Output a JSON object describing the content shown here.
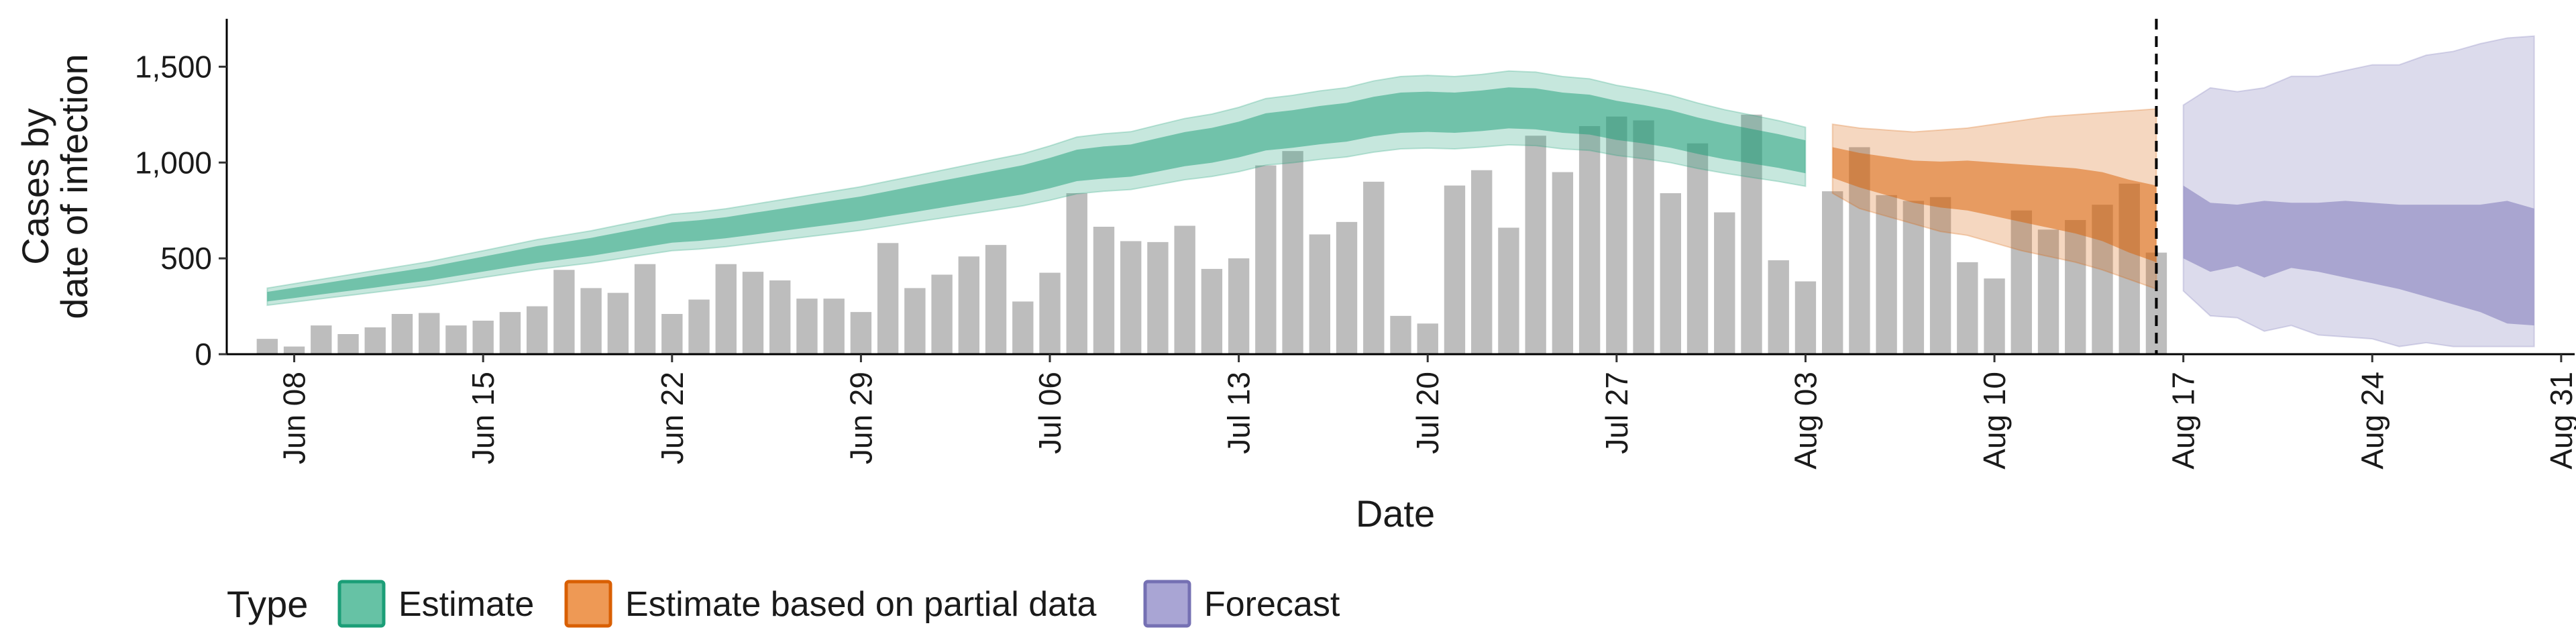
{
  "chart_data": {
    "type": "bar",
    "xlabel": "Date",
    "ylabel_lines": [
      "Cases by",
      "date of infection"
    ],
    "ylim": [
      0,
      1750
    ],
    "yticks": [
      0,
      500,
      1000,
      1500
    ],
    "ytick_labels": [
      "0",
      "500",
      "1,000",
      "1,500"
    ],
    "x_start": "2020-06-07",
    "xlim_days": [
      -1.5,
      85.5
    ],
    "xticks": [
      "Jun 08",
      "Jun 15",
      "Jun 22",
      "Jun 29",
      "Jul 06",
      "Jul 13",
      "Jul 20",
      "Jul 27",
      "Aug 03",
      "Aug 10",
      "Aug 17",
      "Aug 24",
      "Aug 31"
    ],
    "xtick_days": [
      1,
      8,
      15,
      22,
      29,
      36,
      43,
      50,
      57,
      64,
      71,
      78,
      85
    ],
    "vline_day": 70,
    "bars": [
      80,
      40,
      150,
      105,
      140,
      210,
      215,
      150,
      175,
      220,
      250,
      440,
      345,
      320,
      470,
      210,
      285,
      470,
      430,
      385,
      290,
      290,
      220,
      580,
      345,
      415,
      510,
      570,
      275,
      425,
      840,
      665,
      590,
      585,
      670,
      445,
      500,
      985,
      1060,
      625,
      690,
      900,
      200,
      160,
      880,
      960,
      660,
      1140,
      950,
      1190,
      1240,
      1220,
      840,
      1100,
      740,
      1250,
      490,
      380,
      850,
      1080,
      830,
      800,
      820,
      480,
      395,
      750,
      650,
      700,
      780,
      890,
      530
    ],
    "legend_title": "Type",
    "legend": [
      {
        "label": "Estimate",
        "fill": "#66c2a5",
        "stroke": "#1b9e77"
      },
      {
        "label": "Estimate based on partial data",
        "fill": "#ee9955",
        "stroke": "#d95f02"
      },
      {
        "label": "Forecast",
        "fill": "#a9a5d4",
        "stroke": "#7570b3"
      }
    ],
    "ribbons": [
      {
        "type": "Estimate",
        "color": "#1b9e77",
        "start_day": 0,
        "end_day": 57,
        "center": [
          300,
          320,
          340,
          360,
          380,
          400,
          420,
          445,
          470,
          495,
          520,
          540,
          560,
          585,
          610,
          635,
          645,
          660,
          680,
          700,
          720,
          740,
          760,
          785,
          810,
          835,
          860,
          885,
          910,
          945,
          985,
          1000,
          1010,
          1040,
          1070,
          1090,
          1120,
          1160,
          1175,
          1195,
          1210,
          1240,
          1260,
          1265,
          1260,
          1270,
          1285,
          1280,
          1260,
          1250,
          1220,
          1200,
          1175,
          1140,
          1110,
          1085,
          1060,
          1030
        ],
        "i50": [
          [
            275,
            325
          ],
          [
            293,
            347
          ],
          [
            312,
            368
          ],
          [
            330,
            390
          ],
          [
            348,
            412
          ],
          [
            367,
            433
          ],
          [
            385,
            455
          ],
          [
            408,
            482
          ],
          [
            431,
            509
          ],
          [
            454,
            536
          ],
          [
            476,
            564
          ],
          [
            495,
            585
          ],
          [
            513,
            607
          ],
          [
            536,
            634
          ],
          [
            559,
            661
          ],
          [
            582,
            688
          ],
          [
            591,
            699
          ],
          [
            605,
            715
          ],
          [
            623,
            737
          ],
          [
            642,
            758
          ],
          [
            660,
            780
          ],
          [
            678,
            802
          ],
          [
            697,
            823
          ],
          [
            720,
            850
          ],
          [
            742,
            878
          ],
          [
            765,
            905
          ],
          [
            788,
            932
          ],
          [
            811,
            959
          ],
          [
            834,
            986
          ],
          [
            866,
            1024
          ],
          [
            903,
            1067
          ],
          [
            916,
            1084
          ],
          [
            926,
            1094
          ],
          [
            953,
            1127
          ],
          [
            981,
            1159
          ],
          [
            999,
            1181
          ],
          [
            1027,
            1213
          ],
          [
            1063,
            1257
          ],
          [
            1077,
            1273
          ],
          [
            1095,
            1295
          ],
          [
            1109,
            1311
          ],
          [
            1137,
            1343
          ],
          [
            1155,
            1365
          ],
          [
            1160,
            1370
          ],
          [
            1155,
            1365
          ],
          [
            1164,
            1376
          ],
          [
            1178,
            1392
          ],
          [
            1173,
            1387
          ],
          [
            1155,
            1365
          ],
          [
            1146,
            1354
          ],
          [
            1118,
            1322
          ],
          [
            1100,
            1300
          ],
          [
            1077,
            1273
          ],
          [
            1045,
            1235
          ],
          [
            1017,
            1203
          ],
          [
            995,
            1175
          ],
          [
            972,
            1148
          ],
          [
            944,
            1116
          ]
        ],
        "i90": [
          [
            255,
            345
          ],
          [
            272,
            368
          ],
          [
            289,
            391
          ],
          [
            306,
            414
          ],
          [
            323,
            437
          ],
          [
            340,
            460
          ],
          [
            357,
            483
          ],
          [
            378,
            512
          ],
          [
            400,
            540
          ],
          [
            421,
            569
          ],
          [
            442,
            598
          ],
          [
            459,
            621
          ],
          [
            476,
            644
          ],
          [
            497,
            673
          ],
          [
            519,
            701
          ],
          [
            540,
            730
          ],
          [
            548,
            742
          ],
          [
            561,
            759
          ],
          [
            578,
            782
          ],
          [
            595,
            805
          ],
          [
            612,
            828
          ],
          [
            629,
            851
          ],
          [
            646,
            874
          ],
          [
            667,
            903
          ],
          [
            689,
            931
          ],
          [
            710,
            960
          ],
          [
            731,
            989
          ],
          [
            752,
            1018
          ],
          [
            774,
            1046
          ],
          [
            803,
            1087
          ],
          [
            837,
            1133
          ],
          [
            850,
            1150
          ],
          [
            859,
            1161
          ],
          [
            884,
            1196
          ],
          [
            910,
            1230
          ],
          [
            927,
            1253
          ],
          [
            952,
            1288
          ],
          [
            986,
            1334
          ],
          [
            999,
            1351
          ],
          [
            1016,
            1374
          ],
          [
            1029,
            1391
          ],
          [
            1054,
            1426
          ],
          [
            1071,
            1449
          ],
          [
            1075,
            1455
          ],
          [
            1071,
            1449
          ],
          [
            1080,
            1460
          ],
          [
            1092,
            1478
          ],
          [
            1088,
            1472
          ],
          [
            1071,
            1449
          ],
          [
            1063,
            1437
          ],
          [
            1037,
            1403
          ],
          [
            1020,
            1380
          ],
          [
            999,
            1351
          ],
          [
            969,
            1311
          ],
          [
            944,
            1276
          ],
          [
            922,
            1248
          ],
          [
            901,
            1219
          ],
          [
            876,
            1184
          ]
        ]
      },
      {
        "type": "Estimate based on partial data",
        "color": "#d95f02",
        "start_day": 58,
        "end_day": 70,
        "center": [
          1000,
          960,
          930,
          900,
          885,
          880,
          860,
          840,
          820,
          800,
          770,
          720,
          680
        ],
        "i50": [
          [
            920,
            1080
          ],
          [
            870,
            1050
          ],
          [
            830,
            1030
          ],
          [
            790,
            1010
          ],
          [
            765,
            1005
          ],
          [
            750,
            1010
          ],
          [
            720,
            1000
          ],
          [
            690,
            990
          ],
          [
            660,
            980
          ],
          [
            630,
            970
          ],
          [
            590,
            950
          ],
          [
            530,
            910
          ],
          [
            480,
            880
          ]
        ],
        "i90": [
          [
            840,
            1200
          ],
          [
            760,
            1180
          ],
          [
            720,
            1170
          ],
          [
            680,
            1160
          ],
          [
            640,
            1170
          ],
          [
            620,
            1180
          ],
          [
            580,
            1200
          ],
          [
            540,
            1220
          ],
          [
            510,
            1240
          ],
          [
            480,
            1250
          ],
          [
            440,
            1260
          ],
          [
            390,
            1270
          ],
          [
            340,
            1280
          ]
        ]
      },
      {
        "type": "Forecast",
        "color": "#7570b3",
        "start_day": 71,
        "end_day": 84,
        "center": [
          690,
          610,
          620,
          600,
          620,
          610,
          600,
          580,
          560,
          540,
          520,
          500,
          480,
          450
        ],
        "i50": [
          [
            500,
            880
          ],
          [
            430,
            790
          ],
          [
            460,
            780
          ],
          [
            400,
            800
          ],
          [
            450,
            790
          ],
          [
            430,
            790
          ],
          [
            400,
            800
          ],
          [
            370,
            790
          ],
          [
            340,
            780
          ],
          [
            300,
            780
          ],
          [
            260,
            780
          ],
          [
            220,
            780
          ],
          [
            160,
            800
          ],
          [
            150,
            760
          ]
        ],
        "i90": [
          [
            330,
            1300
          ],
          [
            200,
            1390
          ],
          [
            190,
            1370
          ],
          [
            120,
            1390
          ],
          [
            150,
            1450
          ],
          [
            100,
            1450
          ],
          [
            90,
            1480
          ],
          [
            80,
            1510
          ],
          [
            40,
            1510
          ],
          [
            60,
            1560
          ],
          [
            40,
            1580
          ],
          [
            40,
            1620
          ],
          [
            40,
            1650
          ],
          [
            40,
            1660
          ]
        ]
      }
    ]
  }
}
